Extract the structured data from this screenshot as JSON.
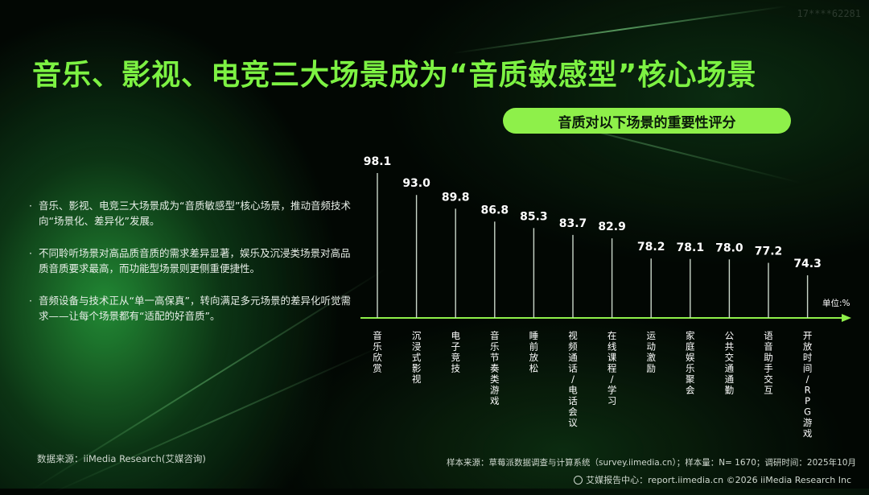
{
  "watermark": "17****62281",
  "title": "音乐、影视、电竞三大场景成为“音质敏感型”核心场景",
  "subtitle": "音质对以下场景的重要性评分",
  "bullets": [
    "音乐、影视、电竞三大场景成为“音质敏感型”核心场景，推动音频技术向“场景化、差异化”发展。",
    "不同聆听场景对高品质音质的需求差异显著，娱乐及沉浸类场景对高品质音质要求最高，而功能型场景则更侧重便捷性。",
    "音频设备与技术正从“单一高保真”，转向满足多元场景的差异化听觉需求——让每个场景都有“适配的好音质”。"
  ],
  "source_left": "数据来源：iiMedia Research(艾媒咨询)",
  "source_right": "样本来源：草莓派数据调查与计算系统（survey.iimedia.cn）；样本量：N= 1670；调研时间：2025年10月",
  "footer": "艾媒报告中心：report.iimedia.cn ©2026 iiMedia Research Inc",
  "colors": {
    "accent": "#7df243",
    "pill": "#8ef04a",
    "axis": "#8ef04a",
    "bar_line": "#c9d6c9"
  },
  "chart_data": {
    "type": "bar",
    "categories": [
      "音乐欣赏",
      "沉浸式影视",
      "电子竞技",
      "音乐节奏类游戏",
      "睡前放松",
      "视频通话/电话会议",
      "在线课程/学习",
      "运动激励",
      "家庭娱乐聚会",
      "公共交通通勤",
      "语音助手交互",
      "开放时间/RPG游戏"
    ],
    "values": [
      98.1,
      93.0,
      89.8,
      86.8,
      85.3,
      83.7,
      82.9,
      78.2,
      78.1,
      78.0,
      77.2,
      74.3
    ],
    "value_labels": [
      "98.1",
      "93.0",
      "89.8",
      "86.8",
      "85.3",
      "83.7",
      "82.9",
      "78.2",
      "78.1",
      "78.0",
      "77.2",
      "74.3"
    ],
    "unit": "单位:%",
    "title": "音质对以下场景的重要性评分",
    "ylim": [
      0,
      100
    ],
    "grid": false
  }
}
